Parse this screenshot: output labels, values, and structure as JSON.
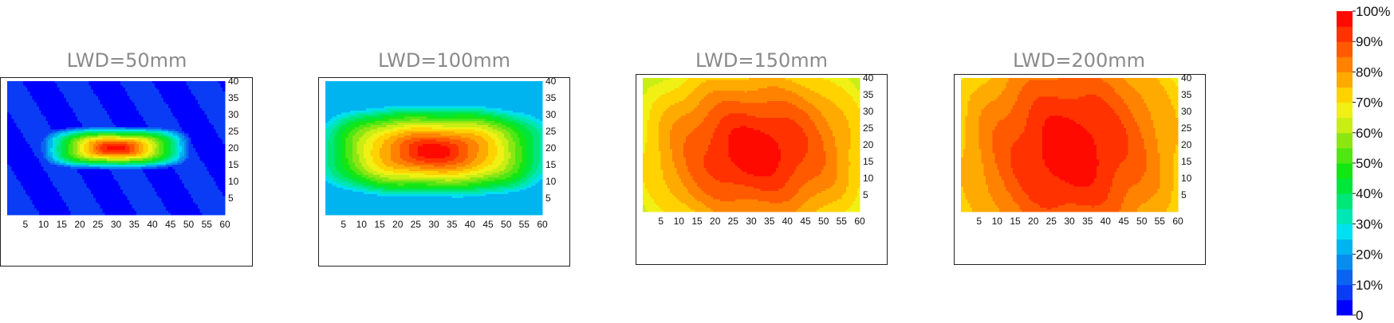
{
  "chart_data": [
    {
      "type": "heatmap",
      "title": "LWD=50mm",
      "x_ticks": [
        "5",
        "10",
        "15",
        "20",
        "25",
        "30",
        "35",
        "40",
        "45",
        "50",
        "55",
        "60"
      ],
      "y_ticks": [
        "5",
        "10",
        "15",
        "20",
        "25",
        "30",
        "35",
        "40"
      ],
      "xlim": [
        0,
        60
      ],
      "ylim": [
        0,
        40
      ],
      "peak_center": [
        30,
        20
      ],
      "peak_value_percent": 100,
      "spread_x": 21,
      "spread_y": 6.5,
      "shape_exponent": 3.5,
      "min_value_percent": 5
    },
    {
      "type": "heatmap",
      "title": "LWD=100mm",
      "x_ticks": [
        "5",
        "10",
        "15",
        "20",
        "25",
        "30",
        "35",
        "40",
        "45",
        "50",
        "55",
        "60"
      ],
      "y_ticks": [
        "5",
        "10",
        "15",
        "20",
        "25",
        "30",
        "35",
        "40"
      ],
      "xlim": [
        0,
        60
      ],
      "ylim": [
        0,
        40
      ],
      "peak_center": [
        30,
        19
      ],
      "peak_value_percent": 100,
      "spread_x": 34,
      "spread_y": 14,
      "shape_exponent": 3.0,
      "min_value_percent": 22
    },
    {
      "type": "heatmap",
      "title": "LWD=150mm",
      "x_ticks": [
        "5",
        "10",
        "15",
        "20",
        "25",
        "30",
        "35",
        "40",
        "45",
        "50",
        "55",
        "60"
      ],
      "y_ticks": [
        "5",
        "10",
        "15",
        "20",
        "25",
        "30",
        "35",
        "40"
      ],
      "xlim": [
        0,
        60
      ],
      "ylim": [
        0,
        40
      ],
      "peak_center": [
        31,
        18
      ],
      "peak_value_percent": 100,
      "spread_x": 44,
      "spread_y": 36,
      "shape_exponent": 2.3,
      "min_value_percent": 52
    },
    {
      "type": "heatmap",
      "title": "LWD=200mm",
      "x_ticks": [
        "5",
        "10",
        "15",
        "20",
        "25",
        "30",
        "35",
        "40",
        "45",
        "50",
        "55",
        "60"
      ],
      "y_ticks": [
        "5",
        "10",
        "15",
        "20",
        "25",
        "30",
        "35",
        "40"
      ],
      "xlim": [
        0,
        60
      ],
      "ylim": [
        0,
        40
      ],
      "peak_center": [
        30,
        18
      ],
      "peak_value_percent": 100,
      "spread_x": 44,
      "spread_y": 50,
      "shape_exponent": 2.0,
      "min_value_percent": 58
    }
  ],
  "colorbar": {
    "labels": [
      "0",
      "10%",
      "20%",
      "30%",
      "40%",
      "50%",
      "60%",
      "70%",
      "80%",
      "90%",
      "100%"
    ],
    "levels_percent": [
      0,
      5,
      10,
      15,
      20,
      25,
      30,
      35,
      40,
      45,
      50,
      55,
      60,
      65,
      70,
      75,
      80,
      85,
      90,
      95
    ],
    "colors": [
      "#0000ff",
      "#0a3cf5",
      "#0a64f0",
      "#0a8ced",
      "#00b4f0",
      "#00e0f0",
      "#00e6b4",
      "#00e678",
      "#00e63c",
      "#14e614",
      "#50e614",
      "#8ce614",
      "#c8ee14",
      "#f0f014",
      "#ffd200",
      "#ffaa00",
      "#ff8200",
      "#ff5a00",
      "#ff3200",
      "#ff0a00"
    ]
  }
}
